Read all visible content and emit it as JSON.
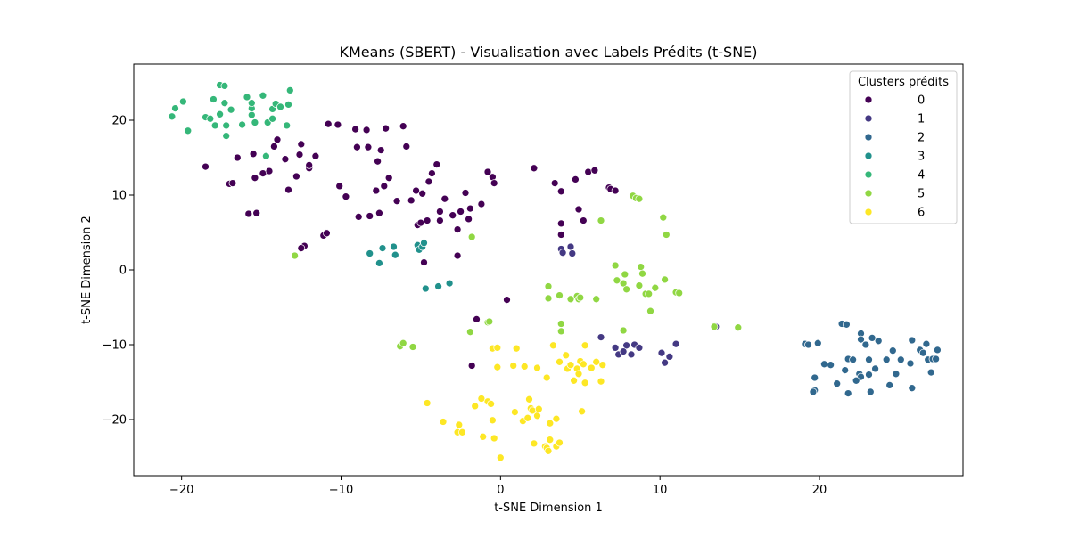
{
  "chart_data": {
    "type": "scatter",
    "title": "KMeans (SBERT) - Visualisation avec Labels Prédits (t-SNE)",
    "xlabel": "t-SNE Dimension 1",
    "ylabel": "t-SNE Dimension 2",
    "xlim": [
      -23,
      29
    ],
    "ylim": [
      -27.5,
      27.5
    ],
    "xticks": [
      -20,
      -10,
      0,
      10,
      20
    ],
    "yticks": [
      -20,
      -10,
      0,
      10,
      20
    ],
    "grid": false,
    "legend": {
      "title": "Clusters prédits",
      "placement": "top-right"
    },
    "series": [
      {
        "name": "0",
        "color": "#440154",
        "points": [
          [
            -18.5,
            13.8
          ],
          [
            -17,
            11.5
          ],
          [
            -16.8,
            11.6
          ],
          [
            -16.5,
            15
          ],
          [
            -15.8,
            7.5
          ],
          [
            -15.3,
            7.6
          ],
          [
            -15.4,
            12.3
          ],
          [
            -15.5,
            15.5
          ],
          [
            -14.9,
            12.9
          ],
          [
            -14.5,
            13.2
          ],
          [
            -14.2,
            16.5
          ],
          [
            -14,
            17.4
          ],
          [
            -13.5,
            14.8
          ],
          [
            -13.3,
            10.7
          ],
          [
            -12.8,
            12.5
          ],
          [
            -12.5,
            16.8
          ],
          [
            -12.6,
            15.4
          ],
          [
            -12,
            13.6
          ],
          [
            -12,
            14
          ],
          [
            -11.6,
            15.2
          ],
          [
            -12.3,
            3.2
          ],
          [
            -12.5,
            2.9
          ],
          [
            -11.1,
            4.6
          ],
          [
            -10.9,
            4.9
          ],
          [
            -10.8,
            19.5
          ],
          [
            -10.2,
            19.4
          ],
          [
            -10.1,
            11.2
          ],
          [
            -9.7,
            9.8
          ],
          [
            -9.1,
            18.8
          ],
          [
            -9,
            16.4
          ],
          [
            -8.9,
            7.1
          ],
          [
            -8.4,
            18.7
          ],
          [
            -8.3,
            16.4
          ],
          [
            -8.2,
            7.2
          ],
          [
            -7.8,
            10.6
          ],
          [
            -7.6,
            7.6
          ],
          [
            -7.2,
            18.9
          ],
          [
            -7.5,
            16
          ],
          [
            -7.7,
            14.5
          ],
          [
            -7.3,
            11.2
          ],
          [
            -7,
            12.3
          ],
          [
            -6.5,
            9.2
          ],
          [
            -6.1,
            19.2
          ],
          [
            -5.9,
            16.5
          ],
          [
            -5.6,
            9.3
          ],
          [
            -5.2,
            6
          ],
          [
            -5,
            6.3
          ],
          [
            -5.3,
            10.6
          ],
          [
            -4.9,
            10.2
          ],
          [
            -4.6,
            6.6
          ],
          [
            -4.5,
            11.8
          ],
          [
            -4.3,
            12.9
          ],
          [
            -4,
            14.1
          ],
          [
            -3.8,
            6.6
          ],
          [
            -3.8,
            7.8
          ],
          [
            -3.5,
            9.5
          ],
          [
            -3,
            7.3
          ],
          [
            -2.7,
            5.4
          ],
          [
            -2.5,
            7.8
          ],
          [
            -2.2,
            10.3
          ],
          [
            -2,
            6.8
          ],
          [
            -1.9,
            8.2
          ],
          [
            -1.2,
            8.8
          ],
          [
            -0.8,
            13.1
          ],
          [
            -0.5,
            12.4
          ],
          [
            -0.4,
            11.6
          ],
          [
            2.1,
            13.6
          ],
          [
            3.4,
            11.6
          ],
          [
            3.8,
            10.5
          ],
          [
            4.7,
            12.1
          ],
          [
            4.9,
            8.1
          ],
          [
            5.2,
            6.6
          ],
          [
            5.5,
            13.1
          ],
          [
            5.9,
            13.3
          ],
          [
            6.8,
            11
          ],
          [
            6.9,
            10.8
          ],
          [
            7.2,
            10.6
          ],
          [
            3.8,
            6.2
          ],
          [
            3.8,
            4.7
          ],
          [
            -4.8,
            1
          ],
          [
            -2.7,
            1.9
          ],
          [
            -1.5,
            -6.6
          ],
          [
            -1.8,
            -12.8
          ],
          [
            0.4,
            -4
          ]
        ]
      },
      {
        "name": "1",
        "color": "#443983",
        "points": [
          [
            3.8,
            2.8
          ],
          [
            3.9,
            2.3
          ],
          [
            4.4,
            3.1
          ],
          [
            4.5,
            2.2
          ],
          [
            6.3,
            -9
          ],
          [
            7.2,
            -10.4
          ],
          [
            7.4,
            -11.3
          ],
          [
            7.9,
            -10.1
          ],
          [
            7.7,
            -10.9
          ],
          [
            8.2,
            -11.3
          ],
          [
            8.4,
            -10
          ],
          [
            8.7,
            -10.4
          ],
          [
            10.1,
            -11.1
          ],
          [
            10.3,
            -12.4
          ],
          [
            10.6,
            -11.6
          ],
          [
            11,
            -9.9
          ],
          [
            13.5,
            -7.6
          ]
        ]
      },
      {
        "name": "2",
        "color": "#31688e",
        "points": [
          [
            19.1,
            -9.9
          ],
          [
            19.3,
            -10
          ],
          [
            19.7,
            -14.4
          ],
          [
            19.7,
            -16.1
          ],
          [
            19.6,
            -16.3
          ],
          [
            19.9,
            -9.8
          ],
          [
            20.3,
            -12.6
          ],
          [
            20.7,
            -12.7
          ],
          [
            21.1,
            -15.2
          ],
          [
            21.4,
            -7.2
          ],
          [
            21.7,
            -7.3
          ],
          [
            21.8,
            -11.9
          ],
          [
            21.6,
            -13.4
          ],
          [
            21.8,
            -16.5
          ],
          [
            22.1,
            -12
          ],
          [
            22.6,
            -8.5
          ],
          [
            22.6,
            -9.3
          ],
          [
            22.5,
            -13.9
          ],
          [
            22.6,
            -14.3
          ],
          [
            22.3,
            -14.8
          ],
          [
            22.9,
            -10
          ],
          [
            23.1,
            -12
          ],
          [
            23.1,
            -14
          ],
          [
            23.2,
            -16.3
          ],
          [
            23.3,
            -9.1
          ],
          [
            23.5,
            -13.2
          ],
          [
            23.7,
            -9.5
          ],
          [
            24.2,
            -12
          ],
          [
            24.4,
            -15.4
          ],
          [
            24.6,
            -10.8
          ],
          [
            24.8,
            -13.9
          ],
          [
            25.1,
            -12
          ],
          [
            25.7,
            -12.5
          ],
          [
            25.8,
            -9.4
          ],
          [
            25.8,
            -15.8
          ],
          [
            26.3,
            -10.7
          ],
          [
            26.5,
            -11.1
          ],
          [
            26.7,
            -9.9
          ],
          [
            26.8,
            -12
          ],
          [
            27,
            -13.7
          ],
          [
            27.1,
            -11.9
          ],
          [
            27.3,
            -11.9
          ],
          [
            27.4,
            -10.7
          ]
        ]
      },
      {
        "name": "3",
        "color": "#21918c",
        "points": [
          [
            -8.2,
            2.2
          ],
          [
            -7.6,
            0.9
          ],
          [
            -7.4,
            2.9
          ],
          [
            -6.7,
            3.1
          ],
          [
            -6.6,
            2
          ],
          [
            -5.2,
            3.3
          ],
          [
            -5.1,
            2.7
          ],
          [
            -4.9,
            3.1
          ],
          [
            -4.8,
            3.6
          ],
          [
            -4.7,
            -2.5
          ],
          [
            -3.9,
            -2.2
          ],
          [
            -3.2,
            -1.8
          ]
        ]
      },
      {
        "name": "4",
        "color": "#35b779",
        "points": [
          [
            -20.6,
            20.5
          ],
          [
            -20.4,
            21.6
          ],
          [
            -19.9,
            22.5
          ],
          [
            -19.6,
            18.6
          ],
          [
            -18.5,
            20.4
          ],
          [
            -18.2,
            20.2
          ],
          [
            -18,
            22.8
          ],
          [
            -17.9,
            19.3
          ],
          [
            -17.6,
            24.7
          ],
          [
            -17.6,
            20.8
          ],
          [
            -17.3,
            24.6
          ],
          [
            -17.3,
            22.3
          ],
          [
            -17.2,
            17.9
          ],
          [
            -17.2,
            19.3
          ],
          [
            -16.9,
            21.4
          ],
          [
            -16.2,
            19.4
          ],
          [
            -15.9,
            23.1
          ],
          [
            -15.6,
            20.7
          ],
          [
            -15.6,
            21.6
          ],
          [
            -15.6,
            22.3
          ],
          [
            -15.4,
            19.7
          ],
          [
            -14.9,
            23.3
          ],
          [
            -14.7,
            15.2
          ],
          [
            -14.6,
            19.7
          ],
          [
            -14.3,
            20.2
          ],
          [
            -14.3,
            21.5
          ],
          [
            -14.1,
            22.2
          ],
          [
            -13.8,
            21.8
          ],
          [
            -13.4,
            19.3
          ],
          [
            -13.3,
            22.1
          ],
          [
            -13.2,
            24
          ]
        ]
      },
      {
        "name": "5",
        "color": "#90d743",
        "points": [
          [
            -12.9,
            1.9
          ],
          [
            -1.8,
            4.4
          ],
          [
            -1.9,
            -8.3
          ],
          [
            -0.8,
            -7
          ],
          [
            -0.7,
            -6.9
          ],
          [
            -6.3,
            -10.2
          ],
          [
            -6.1,
            -9.8
          ],
          [
            -5.5,
            -10.3
          ],
          [
            3,
            -2.2
          ],
          [
            3,
            -3.8
          ],
          [
            3.7,
            -3.4
          ],
          [
            3.8,
            -7.2
          ],
          [
            3.8,
            -8.2
          ],
          [
            4.4,
            -3.9
          ],
          [
            4.8,
            -3.5
          ],
          [
            4.9,
            -3.9
          ],
          [
            5,
            -3.7
          ],
          [
            6,
            -3.9
          ],
          [
            6.3,
            6.6
          ],
          [
            7.2,
            0.6
          ],
          [
            7.3,
            -1.4
          ],
          [
            7.7,
            -1.8
          ],
          [
            7.8,
            -0.6
          ],
          [
            7.7,
            -8.1
          ],
          [
            7.9,
            -2.6
          ],
          [
            8.3,
            9.9
          ],
          [
            8.5,
            9.6
          ],
          [
            8.7,
            9.5
          ],
          [
            8.7,
            -2.1
          ],
          [
            8.8,
            0.4
          ],
          [
            8.9,
            -0.5
          ],
          [
            9.1,
            -3.2
          ],
          [
            9.3,
            -3.2
          ],
          [
            9.4,
            -5.5
          ],
          [
            9.7,
            -2.4
          ],
          [
            10.2,
            7
          ],
          [
            10.3,
            -1.3
          ],
          [
            10.4,
            4.7
          ],
          [
            11,
            -3
          ],
          [
            11.2,
            -3.1
          ],
          [
            13.4,
            -7.6
          ],
          [
            14.9,
            -7.7
          ]
        ]
      },
      {
        "name": "6",
        "color": "#fde725",
        "points": [
          [
            -4.6,
            -17.8
          ],
          [
            -3.6,
            -20.3
          ],
          [
            -2.7,
            -21.7
          ],
          [
            -2.6,
            -20.7
          ],
          [
            -2.4,
            -21.7
          ],
          [
            -1.6,
            -18.2
          ],
          [
            -1.2,
            -17.2
          ],
          [
            -1.1,
            -22.3
          ],
          [
            -0.8,
            -17.6
          ],
          [
            -0.6,
            -17.9
          ],
          [
            -0.5,
            -10.5
          ],
          [
            -0.5,
            -20.1
          ],
          [
            -0.4,
            -22.5
          ],
          [
            -0.2,
            -10.4
          ],
          [
            -0.2,
            -13
          ],
          [
            0,
            -25.1
          ],
          [
            0.8,
            -12.8
          ],
          [
            0.9,
            -19
          ],
          [
            1,
            -10.5
          ],
          [
            1.4,
            -20.2
          ],
          [
            1.5,
            -12.9
          ],
          [
            1.7,
            -19.8
          ],
          [
            1.8,
            -17.3
          ],
          [
            1.9,
            -18.5
          ],
          [
            2,
            -18.8
          ],
          [
            2.1,
            -23.2
          ],
          [
            2.3,
            -13.1
          ],
          [
            2.3,
            -19.5
          ],
          [
            2.4,
            -18.6
          ],
          [
            2.8,
            -23.6
          ],
          [
            2.9,
            -14.4
          ],
          [
            2.9,
            -23.8
          ],
          [
            3,
            -24.2
          ],
          [
            3.1,
            -20.5
          ],
          [
            3.1,
            -22.7
          ],
          [
            3.3,
            -10.1
          ],
          [
            3.5,
            -19.9
          ],
          [
            3.5,
            -23.6
          ],
          [
            3.7,
            -23.1
          ],
          [
            3.7,
            -12.3
          ],
          [
            4.1,
            -11.4
          ],
          [
            4.2,
            -13.2
          ],
          [
            4.4,
            -12.7
          ],
          [
            4.6,
            -14.8
          ],
          [
            4.8,
            -13.2
          ],
          [
            4.9,
            -13.9
          ],
          [
            5,
            -12.2
          ],
          [
            5.1,
            -18.9
          ],
          [
            5.2,
            -12.6
          ],
          [
            5.3,
            -10.1
          ],
          [
            5.3,
            -15.1
          ],
          [
            5.7,
            -13.1
          ],
          [
            6,
            -12.3
          ],
          [
            6.3,
            -14.9
          ],
          [
            6.4,
            -12.7
          ]
        ]
      }
    ]
  }
}
